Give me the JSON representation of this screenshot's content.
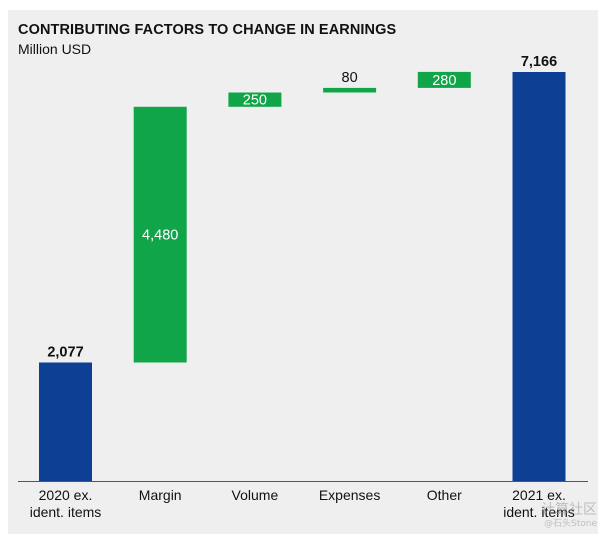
{
  "chart_data": {
    "type": "bar",
    "subtype": "waterfall",
    "title": "CONTRIBUTING FACTORS TO CHANGE IN EARNINGS",
    "subtitle": "Million USD",
    "categories": [
      "2020 ex.\nident. items",
      "Margin",
      "Volume",
      "Expenses",
      "Other",
      "2021 ex.\nident. items"
    ],
    "values": [
      2077,
      4480,
      250,
      80,
      280,
      7166
    ],
    "value_labels": [
      "2,077",
      "4,480",
      "250",
      "80",
      "280",
      "7,166"
    ],
    "kinds": [
      "total",
      "delta",
      "delta",
      "delta",
      "delta",
      "total"
    ],
    "label_positions": [
      "above",
      "inside",
      "inside",
      "above",
      "inside",
      "above"
    ],
    "ylim": [
      0,
      7700
    ],
    "grid": false,
    "colors": {
      "total": "#0d3f94",
      "delta": "#11a54a",
      "label_inside": "#ffffff",
      "label_outside": "#111111",
      "axis": "#555555",
      "panel": "#efefef"
    }
  },
  "watermark": {
    "line1": "计算社区",
    "line2": "@石头Stone"
  }
}
